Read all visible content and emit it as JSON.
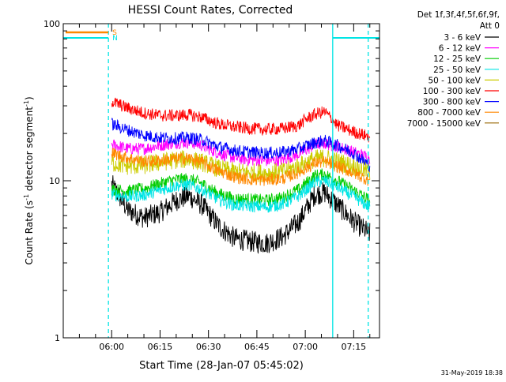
{
  "chart_data": {
    "type": "line",
    "title": "HESSI Count Rates, Corrected",
    "xlabel": "Start Time (28-Jan-07 05:45:02)",
    "ylabel_main": "Count Rate (s",
    "ylabel_sup": "-1",
    "ylabel_mid": " detector segment",
    "ylabel_sup2": "-1",
    "ylabel_end": ")",
    "y_scale": "log",
    "ylim": [
      1,
      100
    ],
    "xlim_minutes": [
      -15,
      83
    ],
    "x_ticks": [
      {
        "minute": 0,
        "label": "06:00"
      },
      {
        "minute": 15,
        "label": "06:15"
      },
      {
        "minute": 30,
        "label": "06:30"
      },
      {
        "minute": 45,
        "label": "06:45"
      },
      {
        "minute": 60,
        "label": "07:00"
      },
      {
        "minute": 75,
        "label": "07:15"
      }
    ],
    "y_ticks": [
      {
        "value": 1,
        "label": "1"
      },
      {
        "value": 10,
        "label": "10"
      },
      {
        "value": 100,
        "label": "100"
      }
    ],
    "legend_header_1": "Det 1f,3f,4f,5f,6f,9f,",
    "legend_header_2": "Att 0",
    "series": [
      {
        "name": "3 - 6 keV",
        "color": "#000000",
        "points": [
          [
            0,
            9.5
          ],
          [
            5,
            6.5
          ],
          [
            10,
            5.8
          ],
          [
            15,
            6.3
          ],
          [
            20,
            7.5
          ],
          [
            24,
            8
          ],
          [
            28,
            7
          ],
          [
            33,
            5.2
          ],
          [
            38,
            4.3
          ],
          [
            43,
            4.1
          ],
          [
            48,
            4
          ],
          [
            53,
            4.4
          ],
          [
            58,
            5.5
          ],
          [
            63,
            8.2
          ],
          [
            66,
            8.4
          ],
          [
            70,
            7
          ],
          [
            75,
            5.5
          ],
          [
            80,
            4.6
          ]
        ]
      },
      {
        "name": "6 - 12 keV",
        "color": "#ff00ff",
        "points": [
          [
            0,
            17
          ],
          [
            5,
            16
          ],
          [
            10,
            16
          ],
          [
            15,
            16.8
          ],
          [
            20,
            17.5
          ],
          [
            24,
            17.6
          ],
          [
            28,
            16.8
          ],
          [
            33,
            15
          ],
          [
            38,
            14
          ],
          [
            43,
            13.6
          ],
          [
            48,
            13.4
          ],
          [
            53,
            13.6
          ],
          [
            58,
            14.8
          ],
          [
            63,
            17
          ],
          [
            66,
            17.3
          ],
          [
            70,
            16.5
          ],
          [
            75,
            15.2
          ],
          [
            80,
            14
          ]
        ]
      },
      {
        "name": "12 - 25 keV",
        "color": "#00cc00",
        "points": [
          [
            0,
            8.8
          ],
          [
            5,
            8.6
          ],
          [
            10,
            8.9
          ],
          [
            15,
            9.6
          ],
          [
            20,
            10.2
          ],
          [
            24,
            10.3
          ],
          [
            28,
            9.6
          ],
          [
            33,
            8.3
          ],
          [
            38,
            7.7
          ],
          [
            43,
            7.6
          ],
          [
            48,
            7.5
          ],
          [
            53,
            7.8
          ],
          [
            58,
            8.8
          ],
          [
            63,
            10.8
          ],
          [
            66,
            11
          ],
          [
            70,
            10
          ],
          [
            75,
            8.7
          ],
          [
            80,
            7.5
          ]
        ]
      },
      {
        "name": "25 - 50 keV",
        "color": "#00e5e5",
        "points": [
          [
            0,
            8.2
          ],
          [
            5,
            7.9
          ],
          [
            10,
            8.1
          ],
          [
            15,
            8.7
          ],
          [
            20,
            9.3
          ],
          [
            24,
            9.4
          ],
          [
            28,
            8.8
          ],
          [
            33,
            7.6
          ],
          [
            38,
            7
          ],
          [
            43,
            6.9
          ],
          [
            48,
            6.8
          ],
          [
            53,
            7.1
          ],
          [
            58,
            8
          ],
          [
            63,
            9.8
          ],
          [
            66,
            10
          ],
          [
            70,
            9.1
          ],
          [
            75,
            7.9
          ],
          [
            80,
            6.8
          ]
        ]
      },
      {
        "name": "50 - 100 keV",
        "color": "#cccc00",
        "points": [
          [
            0,
            13
          ],
          [
            5,
            12.4
          ],
          [
            10,
            12.5
          ],
          [
            15,
            13.1
          ],
          [
            20,
            13.6
          ],
          [
            24,
            13.7
          ],
          [
            28,
            13.1
          ],
          [
            33,
            12
          ],
          [
            38,
            11.4
          ],
          [
            43,
            11.3
          ],
          [
            48,
            11.2
          ],
          [
            53,
            11.4
          ],
          [
            58,
            12.4
          ],
          [
            63,
            13.8
          ],
          [
            66,
            14
          ],
          [
            70,
            13.3
          ],
          [
            75,
            12.3
          ],
          [
            80,
            11.4
          ]
        ]
      },
      {
        "name": "100 - 300 keV",
        "color": "#ff0000",
        "points": [
          [
            0,
            32
          ],
          [
            5,
            29
          ],
          [
            10,
            27
          ],
          [
            15,
            26
          ],
          [
            20,
            26
          ],
          [
            24,
            26.3
          ],
          [
            28,
            25.3
          ],
          [
            33,
            23
          ],
          [
            38,
            22
          ],
          [
            43,
            21.5
          ],
          [
            48,
            21.2
          ],
          [
            53,
            21.5
          ],
          [
            58,
            22.5
          ],
          [
            60,
            24.5
          ],
          [
            63,
            26.5
          ],
          [
            66,
            27.5
          ],
          [
            68,
            25
          ],
          [
            70,
            22.5
          ],
          [
            75,
            20.5
          ],
          [
            80,
            19
          ]
        ]
      },
      {
        "name": "300 - 800 keV",
        "color": "#0000ff",
        "points": [
          [
            0,
            23
          ],
          [
            5,
            21
          ],
          [
            10,
            19.5
          ],
          [
            15,
            18.8
          ],
          [
            20,
            18.6
          ],
          [
            24,
            18.8
          ],
          [
            28,
            18.2
          ],
          [
            33,
            16.5
          ],
          [
            38,
            15.6
          ],
          [
            43,
            15.2
          ],
          [
            48,
            15
          ],
          [
            53,
            15.2
          ],
          [
            58,
            16
          ],
          [
            63,
            17.5
          ],
          [
            66,
            18
          ],
          [
            70,
            16.8
          ],
          [
            75,
            15
          ],
          [
            80,
            12.5
          ]
        ]
      },
      {
        "name": "800 - 7000 keV",
        "color": "#ff8800",
        "points": [
          [
            0,
            15
          ],
          [
            5,
            14
          ],
          [
            10,
            13.3
          ],
          [
            15,
            13.4
          ],
          [
            20,
            13.8
          ],
          [
            24,
            13.9
          ],
          [
            28,
            13.1
          ],
          [
            33,
            11.6
          ],
          [
            38,
            10.6
          ],
          [
            43,
            10.2
          ],
          [
            48,
            10.1
          ],
          [
            53,
            10.3
          ],
          [
            58,
            11.3
          ],
          [
            63,
            13
          ],
          [
            66,
            13.2
          ],
          [
            70,
            12.3
          ],
          [
            75,
            11.2
          ],
          [
            80,
            10
          ]
        ]
      },
      {
        "name": "7000 - 15000 keV",
        "color": "#996600",
        "points": []
      }
    ],
    "attenuator_markers": [
      {
        "label": "S",
        "color": "#ff8800"
      },
      {
        "label": "N",
        "color": "#00e5e5"
      }
    ],
    "vertical_lines": [
      {
        "minute": -1,
        "style": "dashed",
        "color": "#00e5e5"
      },
      {
        "minute": 68.5,
        "style": "solid",
        "color": "#00e5e5"
      },
      {
        "minute": 79.5,
        "style": "dashed",
        "color": "#00e5e5"
      }
    ],
    "timestamp": "31-May-2019 18:38"
  }
}
